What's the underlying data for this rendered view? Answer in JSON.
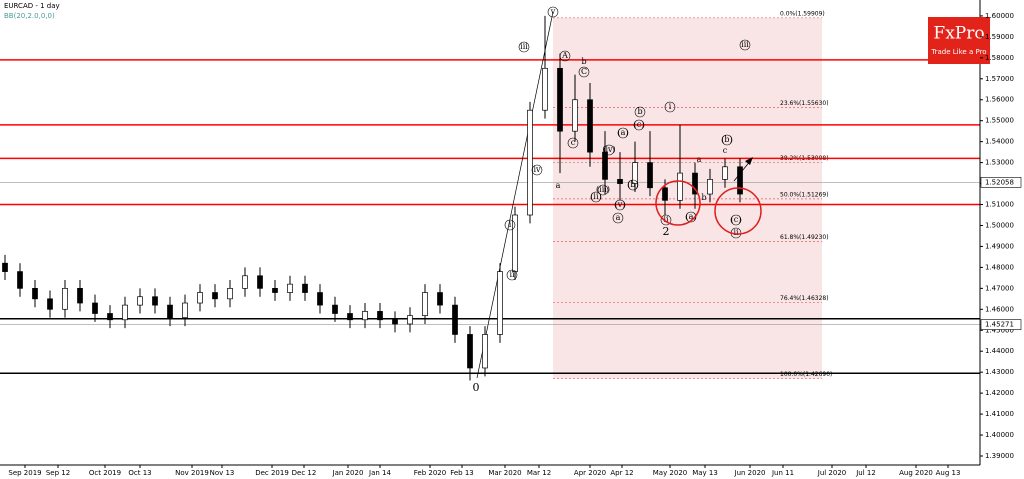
{
  "chart_data": {
    "type": "candlestick",
    "title": "EURCAD - 1 day",
    "subtitle": "BB(20,2.0,0,0)",
    "logo": {
      "name": "FxPro",
      "tagline": "Trade Like a Pro",
      "color": "#e2231a"
    },
    "ylim": [
      1.3857,
      1.6076
    ],
    "yticks": [
      {
        "value": 1.39,
        "label": "1.39000"
      },
      {
        "value": 1.4,
        "label": "1.40000"
      },
      {
        "value": 1.41,
        "label": "1.41000"
      },
      {
        "value": 1.42,
        "label": "1.42000"
      },
      {
        "value": 1.43,
        "label": "1.43000"
      },
      {
        "value": 1.44,
        "label": "1.44000"
      },
      {
        "value": 1.45,
        "label": "1.45000"
      },
      {
        "value": 1.46,
        "label": "1.46000"
      },
      {
        "value": 1.47,
        "label": "1.47000"
      },
      {
        "value": 1.48,
        "label": "1.48000"
      },
      {
        "value": 1.49,
        "label": "1.49000"
      },
      {
        "value": 1.5,
        "label": "1.50000"
      },
      {
        "value": 1.51,
        "label": "1.51000"
      },
      {
        "value": 1.52,
        "label": "1.52000"
      },
      {
        "value": 1.53,
        "label": "1.53000"
      },
      {
        "value": 1.54,
        "label": "1.54000"
      },
      {
        "value": 1.55,
        "label": "1.55000"
      },
      {
        "value": 1.56,
        "label": "1.56000"
      },
      {
        "value": 1.57,
        "label": "1.57000"
      },
      {
        "value": 1.58,
        "label": "1.58000"
      },
      {
        "value": 1.59,
        "label": "1.59000"
      },
      {
        "value": 1.6,
        "label": "1.60000"
      }
    ],
    "x_labels": [
      "Sep 2019",
      "Sep 12",
      "Oct 2019",
      "Oct 13",
      "Nov 2019",
      "Nov 13",
      "Dec 2019",
      "Dec 12",
      "Jan 2020",
      "Jan 14",
      "Feb 2020",
      "Feb 13",
      "Mar 2020",
      "Mar 12",
      "Apr 2020",
      "Apr 12",
      "May 2020",
      "May 13",
      "Jun 2020",
      "Jun 11",
      "Jul 2020",
      "Jul 12",
      "Aug 2020",
      "Aug 13"
    ],
    "up_color": "#ffffff",
    "down_color": "#000000",
    "open": [
      1.482,
      1.478,
      1.47,
      1.465,
      1.46,
      1.47,
      1.463,
      1.458,
      1.455,
      1.462,
      1.466,
      1.462,
      1.456,
      1.463,
      1.468,
      1.465,
      1.47,
      1.476,
      1.47,
      1.468,
      1.472,
      1.468,
      1.462,
      1.458,
      1.455,
      1.459,
      1.455,
      1.453,
      1.457,
      1.468,
      1.462,
      1.448,
      1.432,
      1.448,
      1.478,
      1.505,
      1.555,
      1.575,
      1.545,
      1.56,
      1.535,
      1.522,
      1.52,
      1.53,
      1.518,
      1.512,
      1.525,
      1.515,
      1.522,
      1.528
    ],
    "high": [
      1.486,
      1.482,
      1.474,
      1.469,
      1.474,
      1.474,
      1.467,
      1.462,
      1.466,
      1.47,
      1.47,
      1.466,
      1.467,
      1.472,
      1.472,
      1.474,
      1.48,
      1.48,
      1.474,
      1.476,
      1.476,
      1.472,
      1.466,
      1.462,
      1.463,
      1.463,
      1.459,
      1.461,
      1.472,
      1.472,
      1.466,
      1.452,
      1.452,
      1.482,
      1.509,
      1.559,
      1.6,
      1.582,
      1.572,
      1.568,
      1.545,
      1.535,
      1.54,
      1.545,
      1.522,
      1.548,
      1.53,
      1.527,
      1.532,
      1.532
    ],
    "low": [
      1.474,
      1.466,
      1.461,
      1.456,
      1.456,
      1.459,
      1.454,
      1.451,
      1.451,
      1.458,
      1.458,
      1.452,
      1.452,
      1.459,
      1.461,
      1.461,
      1.466,
      1.466,
      1.464,
      1.464,
      1.464,
      1.458,
      1.454,
      1.451,
      1.451,
      1.451,
      1.449,
      1.449,
      1.453,
      1.458,
      1.444,
      1.426,
      1.428,
      1.444,
      1.474,
      1.501,
      1.551,
      1.525,
      1.54,
      1.528,
      1.515,
      1.512,
      1.516,
      1.514,
      1.505,
      1.508,
      1.508,
      1.511,
      1.518,
      1.511
    ],
    "close": [
      1.478,
      1.47,
      1.465,
      1.46,
      1.47,
      1.463,
      1.458,
      1.455,
      1.462,
      1.466,
      1.462,
      1.456,
      1.463,
      1.468,
      1.465,
      1.47,
      1.476,
      1.47,
      1.468,
      1.472,
      1.468,
      1.462,
      1.458,
      1.455,
      1.459,
      1.455,
      1.453,
      1.457,
      1.468,
      1.462,
      1.448,
      1.432,
      1.448,
      1.478,
      1.505,
      1.555,
      1.575,
      1.545,
      1.56,
      1.535,
      1.522,
      1.52,
      1.53,
      1.518,
      1.512,
      1.525,
      1.515,
      1.522,
      1.528,
      1.515
    ],
    "levels": [
      {
        "value": 1.579,
        "color": "#ff0000"
      },
      {
        "value": 1.548,
        "color": "#ff0000"
      },
      {
        "value": 1.532,
        "color": "#ff0000"
      },
      {
        "value": 1.51,
        "color": "#ff0000"
      },
      {
        "value": 1.4555,
        "color": "#000000"
      },
      {
        "value": 1.4295,
        "color": "#000000"
      }
    ],
    "marked_prices": [
      1.52058,
      1.45271
    ],
    "fibonacci": [
      {
        "value": 1.59909,
        "label": "0.0%(1.59909)"
      },
      {
        "value": 1.5563,
        "label": "23.6%(1.55630)"
      },
      {
        "value": 1.53008,
        "label": "38.2%(1.53008)"
      },
      {
        "value": 1.51269,
        "label": "50.0%(1.51269)"
      },
      {
        "value": 1.4923,
        "label": "61.8%(1.49230)"
      },
      {
        "value": 1.46328,
        "label": "76.4%(1.46328)"
      },
      {
        "value": 1.4269,
        "label": "100.0%(1.42690)"
      }
    ],
    "annotations": [
      "v",
      "iii",
      "iv",
      "A",
      "b",
      "C",
      "c",
      "a",
      "i",
      "ii",
      "(ii)",
      "(iii)",
      "(iv)",
      "(v)",
      "a",
      "(a)",
      "b",
      "(c)",
      "(b)",
      "i",
      "ii",
      "2",
      "(a)",
      "b",
      "a",
      "c",
      "(b)",
      "(c)",
      "ii",
      "iii",
      "0"
    ]
  }
}
